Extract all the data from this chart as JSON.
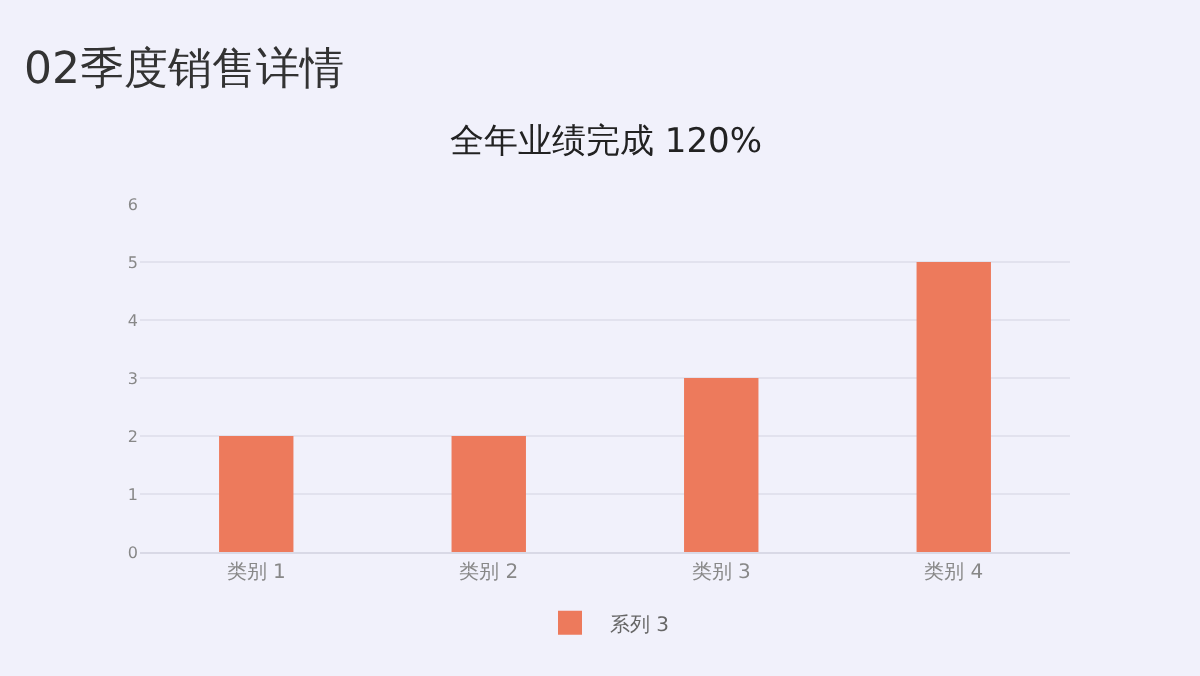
{
  "chart_data": {
    "type": "bar",
    "title": "02季度销售详情",
    "subtitle": "全年业绩完成 120%",
    "categories": [
      "类别 1",
      "类别 2",
      "类别 3",
      "类别 4"
    ],
    "series": [
      {
        "name": "系列 3",
        "color": "#ed7a5c",
        "values": [
          2,
          2,
          3,
          5
        ]
      }
    ],
    "ylim": [
      0,
      6
    ],
    "yticks": [
      0,
      1,
      2,
      3,
      4,
      5,
      6
    ],
    "grid": "y",
    "legend": "bottom"
  }
}
